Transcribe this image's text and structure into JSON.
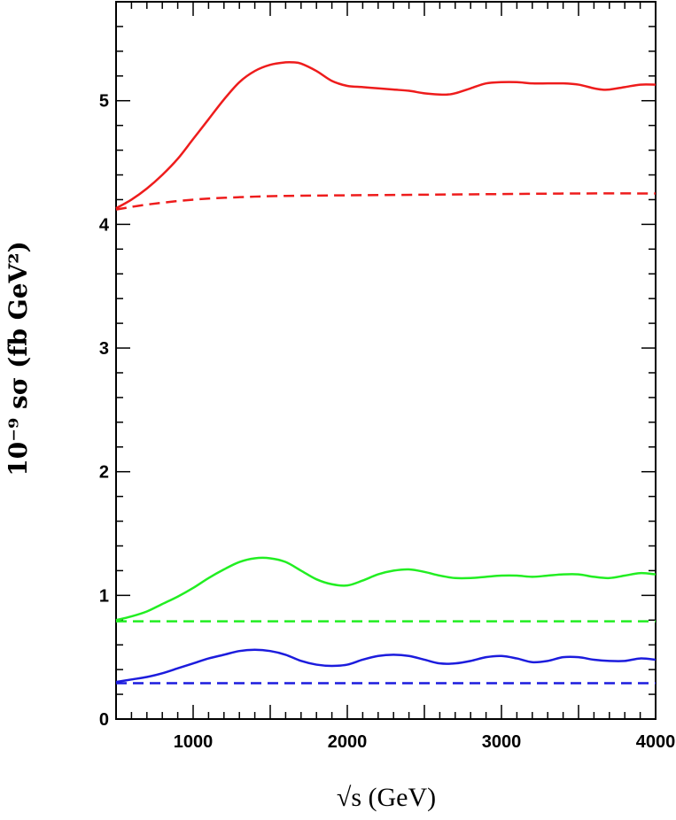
{
  "chart_data": {
    "type": "line",
    "title": "",
    "xlabel": "√s (GeV)",
    "ylabel": "10⁻⁹ sσ (fb GeV²)",
    "xlim": [
      500,
      4000
    ],
    "ylim": [
      0,
      5.8
    ],
    "x_ticks": [
      1000,
      2000,
      3000,
      4000
    ],
    "x_tick_labels": [
      "1000",
      "2000",
      "3000",
      "4000"
    ],
    "y_ticks": [
      0,
      1,
      2,
      3,
      4,
      5
    ],
    "y_tick_labels": [
      "0",
      "1",
      "2",
      "3",
      "4",
      "5"
    ],
    "grid": false,
    "legend": "none",
    "series": [
      {
        "color": "#ee1c1c",
        "style": "solid",
        "x": [
          500,
          600,
          700,
          800,
          900,
          1000,
          1100,
          1200,
          1300,
          1400,
          1500,
          1600,
          1650,
          1700,
          1800,
          1900,
          2000,
          2100,
          2200,
          2300,
          2400,
          2500,
          2600,
          2650,
          2700,
          2800,
          2900,
          3000,
          3100,
          3200,
          3300,
          3400,
          3500,
          3600,
          3650,
          3700,
          3800,
          3900,
          4000
        ],
        "y": [
          4.13,
          4.2,
          4.29,
          4.4,
          4.53,
          4.69,
          4.85,
          5.01,
          5.15,
          5.24,
          5.29,
          5.31,
          5.31,
          5.3,
          5.24,
          5.16,
          5.12,
          5.11,
          5.1,
          5.09,
          5.08,
          5.06,
          5.05,
          5.05,
          5.06,
          5.1,
          5.14,
          5.15,
          5.15,
          5.14,
          5.14,
          5.14,
          5.13,
          5.1,
          5.09,
          5.09,
          5.11,
          5.13,
          5.13
        ]
      },
      {
        "color": "#ee1c1c",
        "style": "dashed",
        "x": [
          500,
          700,
          1000,
          1300,
          1600,
          2000,
          2500,
          3000,
          3500,
          4000
        ],
        "y": [
          4.12,
          4.16,
          4.2,
          4.22,
          4.23,
          4.235,
          4.24,
          4.245,
          4.25,
          4.25
        ]
      },
      {
        "color": "#22ee22",
        "style": "solid",
        "x": [
          500,
          600,
          700,
          800,
          900,
          1000,
          1100,
          1200,
          1300,
          1400,
          1500,
          1600,
          1700,
          1800,
          1900,
          2000,
          2100,
          2200,
          2300,
          2400,
          2500,
          2600,
          2700,
          2800,
          2900,
          3000,
          3100,
          3200,
          3300,
          3400,
          3500,
          3600,
          3700,
          3800,
          3900,
          4000
        ],
        "y": [
          0.8,
          0.83,
          0.87,
          0.93,
          0.99,
          1.06,
          1.14,
          1.21,
          1.27,
          1.3,
          1.3,
          1.27,
          1.2,
          1.13,
          1.09,
          1.08,
          1.12,
          1.17,
          1.2,
          1.21,
          1.19,
          1.16,
          1.14,
          1.14,
          1.15,
          1.16,
          1.16,
          1.15,
          1.16,
          1.17,
          1.17,
          1.15,
          1.14,
          1.16,
          1.18,
          1.17
        ]
      },
      {
        "color": "#22ee22",
        "style": "dashed",
        "x": [
          500,
          4000
        ],
        "y": [
          0.79,
          0.79
        ]
      },
      {
        "color": "#1c1cdd",
        "style": "solid",
        "x": [
          500,
          600,
          700,
          800,
          900,
          1000,
          1100,
          1200,
          1300,
          1400,
          1500,
          1600,
          1700,
          1800,
          1900,
          2000,
          2100,
          2200,
          2300,
          2400,
          2500,
          2600,
          2700,
          2800,
          2900,
          3000,
          3100,
          3200,
          3300,
          3400,
          3500,
          3600,
          3700,
          3800,
          3900,
          4000
        ],
        "y": [
          0.3,
          0.32,
          0.34,
          0.37,
          0.41,
          0.45,
          0.49,
          0.52,
          0.55,
          0.56,
          0.55,
          0.52,
          0.47,
          0.44,
          0.43,
          0.44,
          0.48,
          0.51,
          0.52,
          0.51,
          0.48,
          0.45,
          0.45,
          0.47,
          0.5,
          0.51,
          0.49,
          0.46,
          0.47,
          0.5,
          0.5,
          0.48,
          0.47,
          0.47,
          0.49,
          0.48
        ]
      },
      {
        "color": "#1c1cdd",
        "style": "dashed",
        "x": [
          500,
          4000
        ],
        "y": [
          0.29,
          0.29
        ]
      }
    ]
  }
}
